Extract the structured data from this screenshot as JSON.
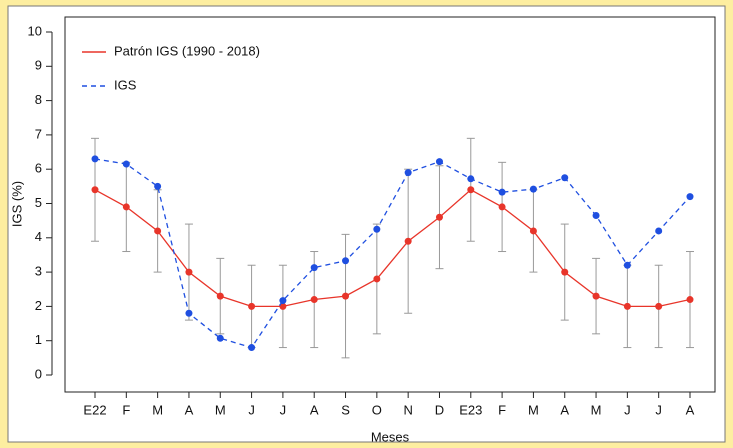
{
  "chart_data": {
    "type": "line",
    "x_label": "Meses",
    "y_label": "IGS (%)",
    "categories": [
      "E22",
      "F",
      "M",
      "A",
      "M",
      "J",
      "J",
      "A",
      "S",
      "O",
      "N",
      "D",
      "E23",
      "F",
      "M",
      "A",
      "M",
      "J",
      "J",
      "A"
    ],
    "ylim": [
      0,
      10
    ],
    "yticks": [
      0,
      1,
      2,
      3,
      4,
      5,
      6,
      7,
      8,
      9,
      10
    ],
    "legend": "top-left",
    "series": [
      {
        "name": "Patrón IGS (1990 - 2018)",
        "color": "#e8352a",
        "style": "solid",
        "values": [
          5.4,
          4.9,
          4.2,
          3.0,
          2.3,
          2.0,
          2.0,
          2.2,
          2.3,
          2.8,
          3.9,
          4.6,
          5.4,
          4.9,
          4.2,
          3.0,
          2.3,
          2.0,
          2.0,
          2.2
        ],
        "errors": [
          1.5,
          1.3,
          1.2,
          1.4,
          1.1,
          1.2,
          1.2,
          1.4,
          1.8,
          1.6,
          2.1,
          1.5,
          1.5,
          1.3,
          1.2,
          1.4,
          1.1,
          1.2,
          1.2,
          1.4
        ],
        "error_color": "#999999"
      },
      {
        "name": "IGS",
        "color": "#1f4fe0",
        "style": "dashed",
        "values": [
          6.3,
          6.15,
          5.5,
          1.8,
          1.07,
          0.8,
          2.17,
          3.13,
          3.33,
          4.25,
          5.9,
          6.22,
          5.72,
          5.33,
          5.42,
          5.75,
          4.65,
          3.2,
          4.2,
          5.2
        ]
      }
    ]
  }
}
